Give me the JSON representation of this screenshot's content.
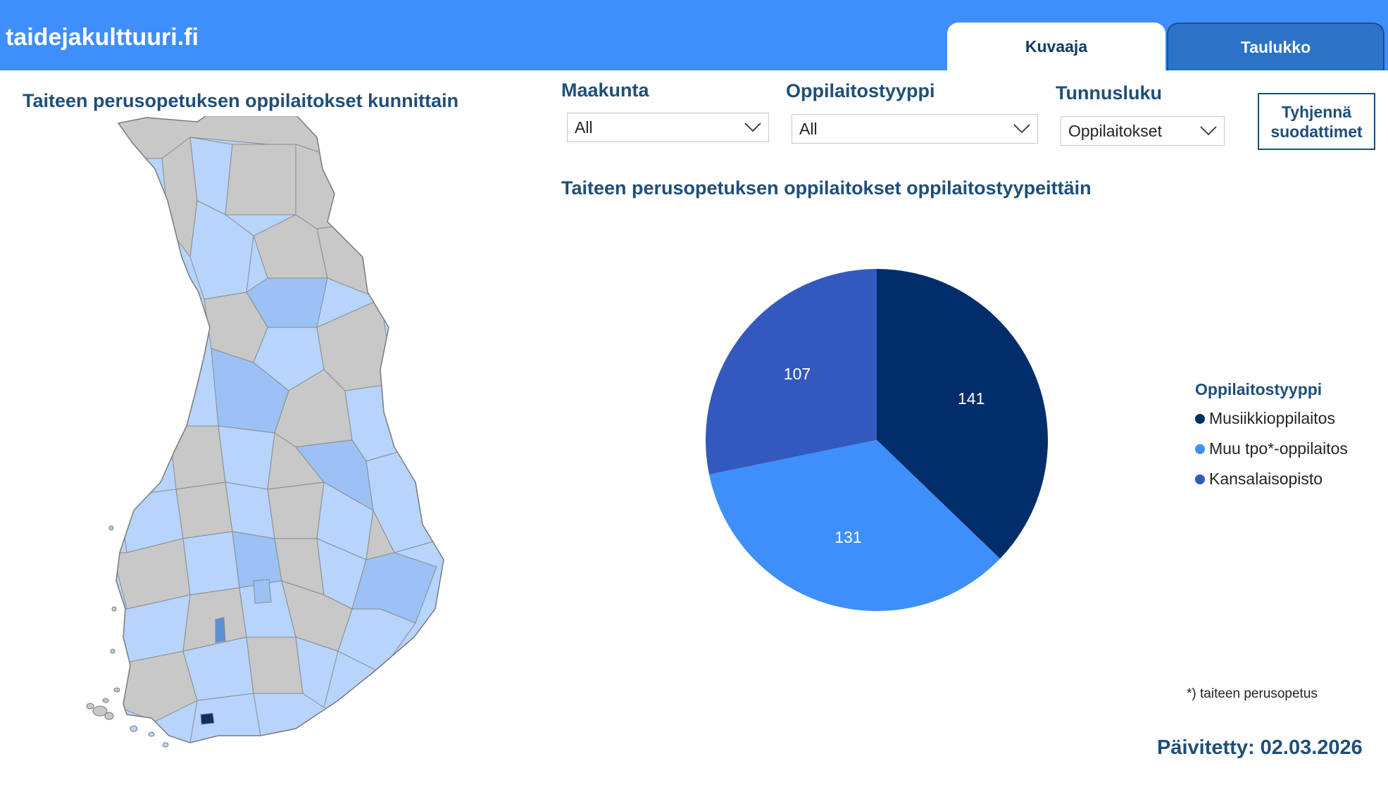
{
  "header": {
    "site_title": "taidejakulttuuri.fi",
    "tabs": [
      {
        "label": "Kuvaaja",
        "active": true
      },
      {
        "label": "Taulukko",
        "active": false
      }
    ]
  },
  "map": {
    "title": "Taiteen perusopetuksen oppilaitokset kunnittain",
    "colors": {
      "none": "#c8c8c8",
      "low": "#b7d4fc",
      "mid": "#9cc1f4",
      "high": "#5b8fd6",
      "max": "#0b2f66"
    }
  },
  "filters": {
    "maakunta": {
      "label": "Maakunta",
      "value": "All"
    },
    "oppilaitostyyppi": {
      "label": "Oppilaitostyyppi",
      "value": "All"
    },
    "tunnusluku": {
      "label": "Tunnusluku",
      "value": "Oppilaitokset"
    },
    "clear_button": "Tyhjennä suodattimet"
  },
  "chart_data": {
    "type": "pie",
    "title": "Taiteen perusopetuksen oppilaitokset oppilaitostyypeittäin",
    "legend_title": "Oppilaitostyyppi",
    "legend_placement": "right",
    "categories": [
      "Musiikkioppilaitos",
      "Muu tpo*-oppilaitos",
      "Kansalaisopisto"
    ],
    "values": [
      141,
      131,
      107
    ],
    "colors": [
      "#012d6a",
      "#3f8ffb",
      "#3459be"
    ]
  },
  "footnote": "*) taiteen perusopetus",
  "updated": "Päivitetty: 02.03.2026"
}
